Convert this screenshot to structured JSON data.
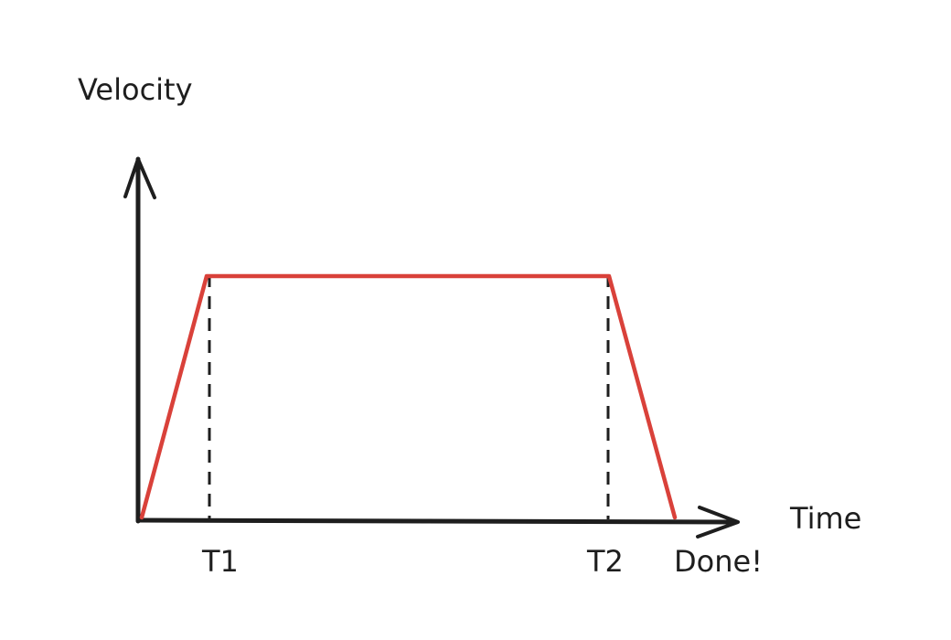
{
  "diagram": {
    "y_axis_label": "Velocity",
    "x_axis_label": "Time",
    "markers": [
      {
        "label": "T1"
      },
      {
        "label": "T2"
      },
      {
        "label": "Done!"
      }
    ],
    "colors": {
      "profile": "#d9413a",
      "axes": "#1e1e1e",
      "guides": "#1e1e1e",
      "text": "#1e1e1e"
    }
  }
}
